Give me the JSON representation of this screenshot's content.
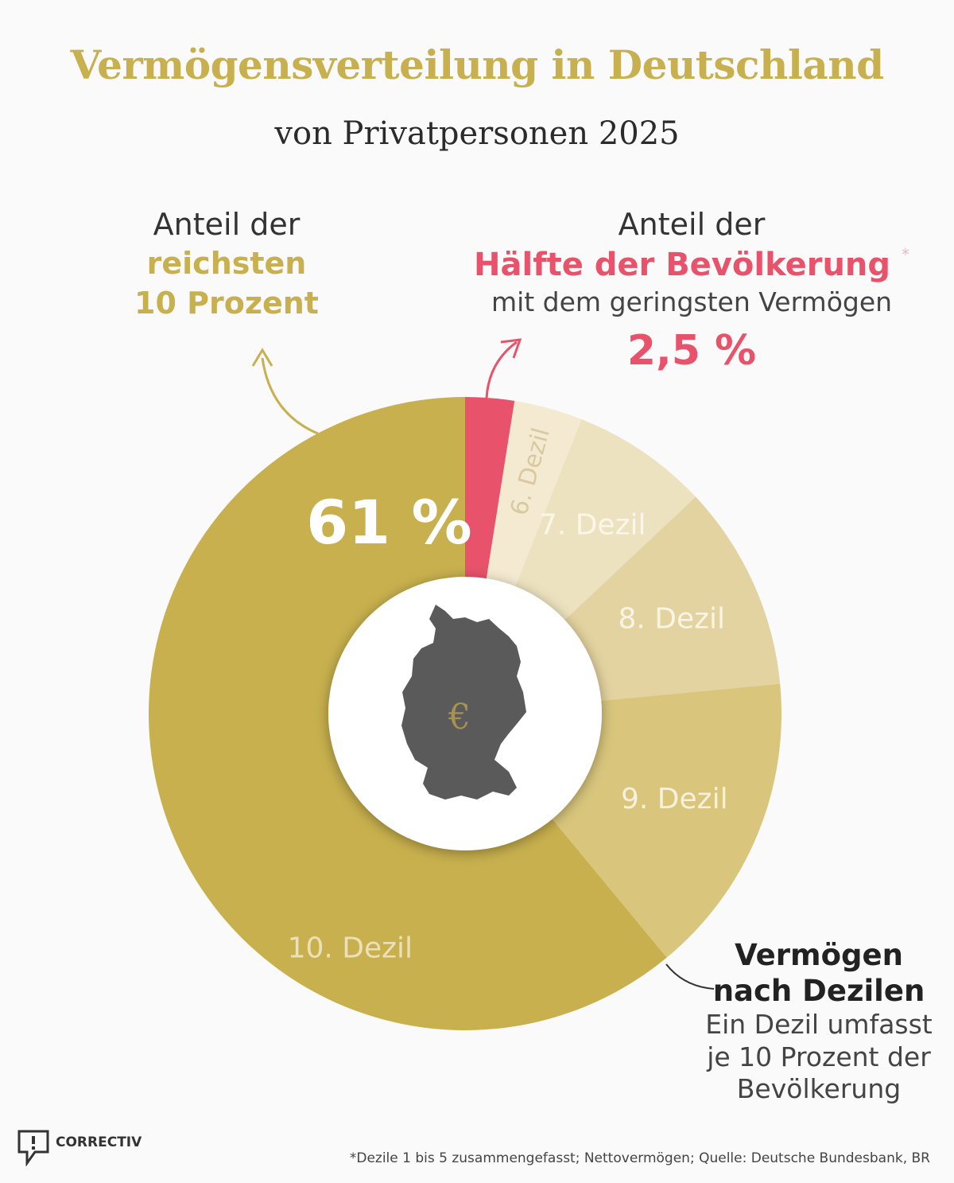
{
  "title": "Vermögensverteilung in Deutschland",
  "subtitle": "von Privatpersonen 2025",
  "callout_top10": {
    "line1": "Anteil der",
    "line2": "reichsten",
    "line3": "10 Prozent"
  },
  "callout_bottom50": {
    "line1": "Anteil der",
    "line2": "Hälfte der Bevölkerung",
    "asterisk": "*",
    "line3": "mit dem geringsten Vermögen",
    "value": "2,5 %"
  },
  "legend": {
    "line1": "Vermögen",
    "line2": "nach Dezilen",
    "line3": "Ein Dezil umfasst",
    "line4": "je 10 Prozent der",
    "line5": "Bevölkerung"
  },
  "footer": "*Dezile 1 bis 5 zusammengefasst;  Nettovermögen; Quelle: Deutsche Bundesbank, BR",
  "brand": "CORRECTIV",
  "center_symbol": "€",
  "colors": {
    "gold": "#c8b04e",
    "red": "#e8536b",
    "map": "#5a5a5a"
  },
  "chart_data": {
    "type": "pie",
    "categories": [
      "Dezile 1–5",
      "6. Dezil",
      "7. Dezil",
      "8. Dezil",
      "9. Dezil",
      "10. Dezil"
    ],
    "values": [
      2.5,
      3.5,
      7,
      10.5,
      15.5,
      61
    ],
    "labels": [
      "",
      "6. Dezil",
      "7. Dezil",
      "8. Dezil",
      "9. Dezil",
      "10. Dezil"
    ],
    "value_labels": [
      "2,5 %",
      "",
      "",
      "",
      "",
      "61 %"
    ],
    "colors": [
      "#e8536b",
      "#f4ead2",
      "#ece2bf",
      "#e3d3a0",
      "#d9c67c",
      "#c8b04e"
    ],
    "label_colors": [
      "#ffffff",
      "#d8c9a0",
      "#fbf6e8",
      "#faf4e4",
      "#f7f0da",
      "#ece0b8"
    ],
    "hole": true
  }
}
